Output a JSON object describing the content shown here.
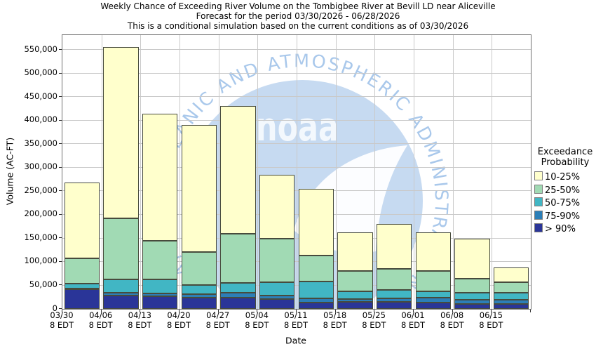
{
  "title": {
    "line1": "Weekly Chance of Exceeding River Volume on the Tombigbee River at Bevill LD near Aliceville",
    "line2": "Forecast for the period 03/30/2026 - 06/28/2026",
    "line3": "This is a conditional simulation based on the current conditions as of 03/30/2026"
  },
  "watermark": {
    "ring_text": "NATIONAL OCEANIC AND ATMOSPHERIC ADMINISTRATION",
    "logo_text": "noaa"
  },
  "chart_data": {
    "type": "bar",
    "stacked": true,
    "title": "Weekly Chance of Exceeding River Volume on the Tombigbee River at Bevill LD near Aliceville",
    "subtitle": "Forecast for the period 03/30/2026 - 06/28/2026",
    "note": "This is a conditional simulation based on the current conditions as of 03/30/2026",
    "xlabel": "Date",
    "ylabel": "Volume (AC-FT)",
    "units": "AC-FT",
    "ylim": [
      0,
      582000
    ],
    "ytick_interval": 50000,
    "ytick_max": 550000,
    "grid": true,
    "legend_position": "right",
    "legend_title_lines": [
      "Exceedance",
      "Probability"
    ],
    "x_sublabel": "8 EDT",
    "bands": [
      {
        "label": "> 90%",
        "color": "#2A3598"
      },
      {
        "label": "75-90%",
        "color": "#2C7FB8"
      },
      {
        "label": "50-75%",
        "color": "#41B6C4"
      },
      {
        "label": "25-50%",
        "color": "#A1DAB4"
      },
      {
        "label": "10-25%",
        "color": "#FFFFCC"
      }
    ],
    "bars": [
      {
        "date": "03/30",
        "cumulative_tops": [
          42000,
          43000,
          53000,
          107000,
          269000
        ]
      },
      {
        "date": "04/06",
        "cumulative_tops": [
          29000,
          34000,
          63000,
          192000,
          557000
        ]
      },
      {
        "date": "04/13",
        "cumulative_tops": [
          27000,
          33000,
          63000,
          145000,
          415000
        ]
      },
      {
        "date": "04/20",
        "cumulative_tops": [
          24000,
          31000,
          51000,
          121000,
          391000
        ]
      },
      {
        "date": "04/27",
        "cumulative_tops": [
          24000,
          35000,
          55000,
          160000,
          432000
        ]
      },
      {
        "date": "05/04",
        "cumulative_tops": [
          21000,
          29000,
          56000,
          149000,
          285000
        ]
      },
      {
        "date": "05/11",
        "cumulative_tops": [
          14000,
          23000,
          58000,
          113000,
          255000
        ]
      },
      {
        "date": "05/18",
        "cumulative_tops": [
          15000,
          21000,
          38000,
          81000,
          162000
        ]
      },
      {
        "date": "05/25",
        "cumulative_tops": [
          15000,
          23000,
          41000,
          85000,
          181000
        ]
      },
      {
        "date": "06/01",
        "cumulative_tops": [
          14000,
          24000,
          38000,
          80000,
          162000
        ]
      },
      {
        "date": "06/08",
        "cumulative_tops": [
          11000,
          20000,
          34000,
          64000,
          149000
        ]
      },
      {
        "date": "06/15",
        "cumulative_tops": [
          11000,
          19000,
          35000,
          56000,
          88000
        ]
      }
    ]
  }
}
